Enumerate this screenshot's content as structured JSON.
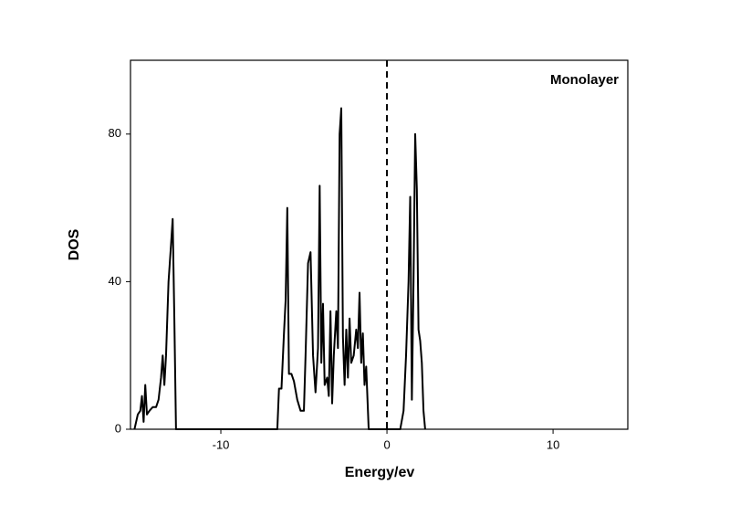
{
  "chart_data": {
    "type": "line",
    "xlabel": "Energy/ev",
    "ylabel": "DOS",
    "annotation": "Monolayer",
    "xlim": [
      -15.44,
      14.5
    ],
    "ylim": [
      0,
      100
    ],
    "xticks": [
      -10,
      0,
      10
    ],
    "yticks": [
      0,
      40,
      80
    ],
    "vline": 0,
    "color": "#000000",
    "x": [
      -15.2,
      -15.0,
      -14.85,
      -14.75,
      -14.65,
      -14.55,
      -14.45,
      -14.3,
      -14.1,
      -13.9,
      -13.75,
      -13.6,
      -13.5,
      -13.4,
      -13.3,
      -13.15,
      -13.0,
      -12.9,
      -12.8,
      -12.7,
      -6.6,
      -6.5,
      -6.35,
      -6.2,
      -6.1,
      -6.0,
      -5.9,
      -5.75,
      -5.6,
      -5.4,
      -5.2,
      -5.0,
      -4.9,
      -4.75,
      -4.6,
      -4.45,
      -4.3,
      -4.15,
      -4.05,
      -3.95,
      -3.85,
      -3.75,
      -3.6,
      -3.5,
      -3.4,
      -3.3,
      -3.2,
      -3.05,
      -2.95,
      -2.85,
      -2.75,
      -2.65,
      -2.55,
      -2.45,
      -2.35,
      -2.25,
      -2.15,
      -2.0,
      -1.85,
      -1.75,
      -1.65,
      -1.55,
      -1.45,
      -1.35,
      -1.25,
      -1.1,
      0.8,
      1.0,
      1.15,
      1.3,
      1.4,
      1.5,
      1.6,
      1.7,
      1.8,
      1.9,
      2.0,
      2.1,
      2.2,
      2.3
    ],
    "values": [
      0,
      4,
      5,
      9,
      2,
      12,
      4,
      5,
      6,
      6,
      8,
      14,
      20,
      12,
      20,
      40,
      50,
      57,
      30,
      0,
      0,
      11,
      11,
      26,
      35,
      60,
      15,
      15,
      13,
      8,
      5,
      5,
      20,
      45,
      48,
      20,
      10,
      22,
      66,
      18,
      34,
      12,
      14,
      9,
      32,
      7,
      20,
      32,
      22,
      80,
      87,
      25,
      12,
      27,
      14,
      30,
      18,
      20,
      27,
      22,
      37,
      18,
      26,
      12,
      17,
      0,
      0,
      5,
      20,
      40,
      63,
      8,
      40,
      80,
      65,
      27,
      24,
      18,
      5,
      0
    ]
  }
}
